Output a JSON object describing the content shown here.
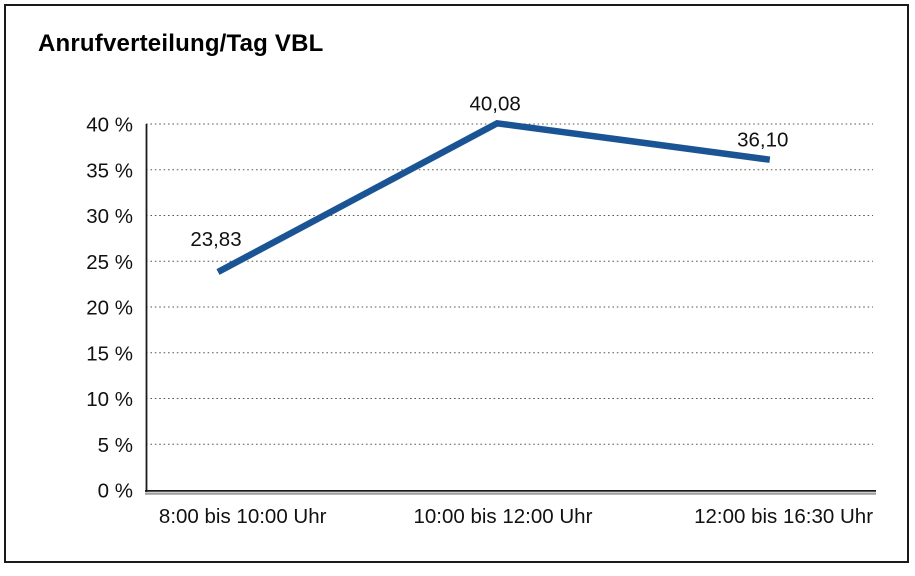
{
  "chart": {
    "title": "Anrufverteilung/Tag VBL"
  },
  "chart_data": {
    "type": "line",
    "title": "Anrufverteilung/Tag VBL",
    "categories": [
      "8:00 bis 10:00 Uhr",
      "10:00 bis 12:00 Uhr",
      "12:00 bis 16:30 Uhr"
    ],
    "values": [
      23.83,
      40.08,
      36.1
    ],
    "point_labels": [
      "23,83",
      "40,08",
      "36,10"
    ],
    "y_ticks": [
      "0 %",
      "5 %",
      "10 %",
      "15 %",
      "20 %",
      "25 %",
      "30 %",
      "35 %",
      "40 %"
    ],
    "ylim": [
      0,
      40
    ],
    "xlabel": "",
    "ylabel": "",
    "grid": "horizontal-dotted",
    "legend": "none",
    "markers": "none",
    "line_color": "#1b5494",
    "grid_color": "#595959",
    "axis_color": "#1a1a1a",
    "axis_shadow_color": "#9d9d9d",
    "text_color": "#000000",
    "background": "#ffffff",
    "frame_color": "#1a1a1a"
  }
}
